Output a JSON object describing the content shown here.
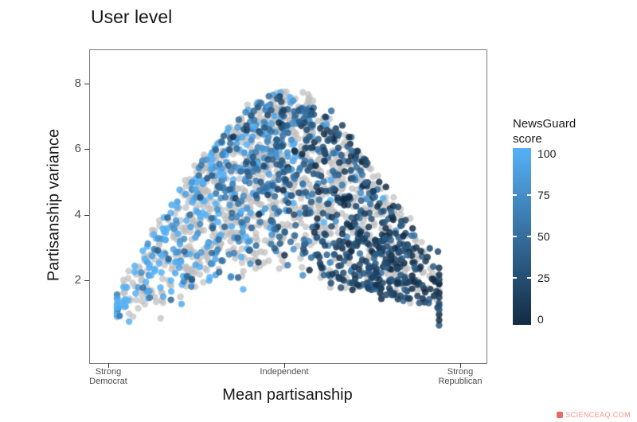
{
  "title": "User level",
  "watermark": {
    "text": "SCIENCEAQ.COM",
    "color": "#ef8078"
  },
  "chart_data": {
    "type": "scatter",
    "title": "User level",
    "xlabel": "Mean partisanship",
    "ylabel": "Partisanship variance",
    "x_axis": {
      "tick_positions": [
        -1,
        0,
        1
      ],
      "tick_labels": [
        "Strong Democrat",
        "Independent",
        "Strong Republican"
      ],
      "tick_lines": [
        [
          "Strong",
          "Democrat"
        ],
        [
          "Independent",
          ""
        ],
        [
          "Strong",
          "Republican"
        ]
      ]
    },
    "y_axis": {
      "ticks": [
        8,
        6,
        4,
        2
      ],
      "range": [
        0.3,
        8.6
      ]
    },
    "legend": {
      "title": "NewsGuard score",
      "title_lines": [
        "NewsGuard",
        "score"
      ],
      "ticks": [
        100,
        75,
        50,
        25,
        0
      ],
      "low_color": "#132B43",
      "high_color": "#56B1F7",
      "position": "right"
    },
    "style": {
      "na_color": "#BEBEBE",
      "point_radius": 4.2,
      "gray_alpha": 0.7,
      "color_alpha": 0.85,
      "grid": "off",
      "panel_border": "on"
    },
    "description": "Arch-shaped scatter cloud of users: partisanship variance peaks near 7.7 for Independents and falls to ~0.7 at the Strong Democrat tip and ~1.5 on the Strong Republican side. Gray points lack a NewsGuard score; light-blue points (score near 100) dominate the left/center of the arch; dark-navy points (low scores) cluster along the right descending branch around variance 1.5-3.5.",
    "generator": {
      "seed": 7,
      "n_points": 1900,
      "na_fraction": 0.56,
      "x_mean": -0.03,
      "x_sd": 0.42,
      "upper_envelope": "0.9 + 6.8*(1 - |x|^1.6)",
      "lower_envelope": "0.55 + 1.75*(1 - |x|)",
      "score_model": "55 - 60*x + N(0,28) clamped to [0,100]",
      "dark_cluster": {
        "n": 170,
        "x_mean": 0.55,
        "x_sd": 0.16,
        "score_range": [
          0,
          42
        ]
      }
    }
  }
}
